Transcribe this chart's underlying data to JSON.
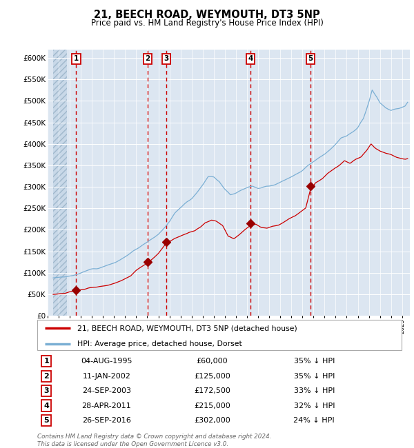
{
  "title": "21, BEECH ROAD, WEYMOUTH, DT3 5NP",
  "subtitle": "Price paid vs. HM Land Registry's House Price Index (HPI)",
  "ylabel_ticks": [
    "£0",
    "£50K",
    "£100K",
    "£150K",
    "£200K",
    "£250K",
    "£300K",
    "£350K",
    "£400K",
    "£450K",
    "£500K",
    "£550K",
    "£600K"
  ],
  "ylim": [
    0,
    620000
  ],
  "ytick_vals": [
    0,
    50000,
    100000,
    150000,
    200000,
    250000,
    300000,
    350000,
    400000,
    450000,
    500000,
    550000,
    600000
  ],
  "sale_dates_num": [
    1995.58,
    2002.03,
    2003.73,
    2011.32,
    2016.73
  ],
  "sale_prices": [
    60000,
    125000,
    172500,
    215000,
    302000
  ],
  "sale_labels": [
    "1",
    "2",
    "3",
    "4",
    "5"
  ],
  "sale_dates_str": [
    "04-AUG-1995",
    "11-JAN-2002",
    "24-SEP-2003",
    "28-APR-2011",
    "26-SEP-2016"
  ],
  "sale_prices_str": [
    "£60,000",
    "£125,000",
    "£172,500",
    "£215,000",
    "£302,000"
  ],
  "sale_pct_str": [
    "35% ↓ HPI",
    "35% ↓ HPI",
    "33% ↓ HPI",
    "32% ↓ HPI",
    "24% ↓ HPI"
  ],
  "red_line_color": "#cc0000",
  "blue_line_color": "#7bafd4",
  "marker_color": "#990000",
  "vline_color": "#cc0000",
  "bg_color": "#dce6f1",
  "grid_color": "#ffffff",
  "legend_label_red": "21, BEECH ROAD, WEYMOUTH, DT3 5NP (detached house)",
  "legend_label_blue": "HPI: Average price, detached house, Dorset",
  "footnote": "Contains HM Land Registry data © Crown copyright and database right 2024.\nThis data is licensed under the Open Government Licence v3.0.",
  "xmin": 1993.5,
  "xmax": 2025.7,
  "hatch_xmax": 1994.75
}
